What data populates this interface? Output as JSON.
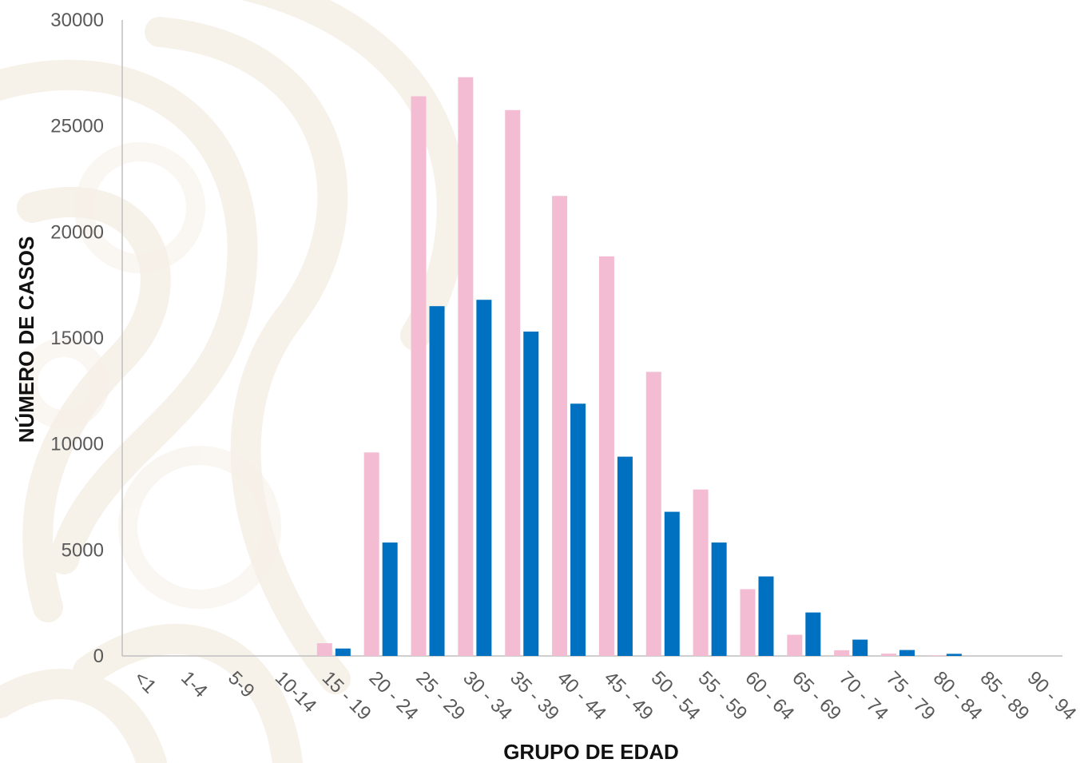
{
  "chart_data": {
    "type": "bar",
    "xlabel": "GRUPO DE EDAD",
    "ylabel": "NÚMERO DE CASOS",
    "ylim": [
      0,
      30000
    ],
    "yticks": [
      "0",
      "5000",
      "10000",
      "15000",
      "20000",
      "25000",
      "30000"
    ],
    "grid": false,
    "legend": "none",
    "categories": [
      "<1",
      "1-4",
      "5-9",
      "10-14",
      "15 - 19",
      "20 - 24",
      "25 - 29",
      "30 - 34",
      "35 - 39",
      "40 - 44",
      "45 - 49",
      "50 - 54",
      "55 - 59",
      "60 - 64",
      "65 - 69",
      "70 - 74",
      "75 - 79",
      "80 - 84",
      "85 - 89",
      "90 - 94"
    ],
    "series": [
      {
        "color": "#f3bcd3",
        "values": [
          0,
          0,
          0,
          0,
          600,
          9600,
          26400,
          27300,
          25750,
          21700,
          18850,
          13400,
          7850,
          3150,
          1000,
          270,
          110,
          30,
          0,
          0
        ]
      },
      {
        "color": "#0070c0",
        "values": [
          0,
          0,
          0,
          0,
          350,
          5350,
          16500,
          16800,
          15300,
          11900,
          9400,
          6800,
          5350,
          3750,
          2050,
          770,
          280,
          100,
          0,
          0
        ]
      }
    ]
  }
}
